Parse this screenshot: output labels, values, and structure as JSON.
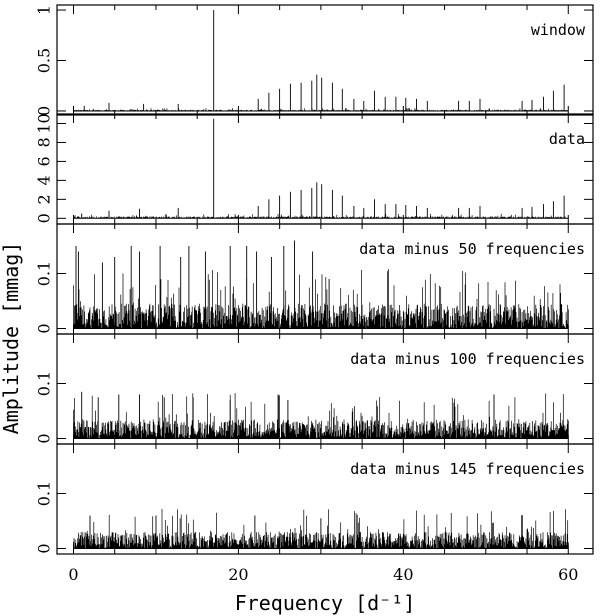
{
  "chart_data": {
    "type": "line",
    "xlabel": "Frequency [d⁻¹]",
    "ylabel": "Amplitude [mmag]",
    "xlim": [
      -2,
      63
    ],
    "x_ticks": [
      0,
      20,
      40,
      60
    ],
    "x_tick_labels": [
      "0",
      "20",
      "40",
      "60"
    ],
    "panels": [
      {
        "label": "window",
        "ylim": [
          -0.04,
          1.05
        ],
        "y_ticks": [
          0,
          0.5,
          1
        ],
        "y_tick_labels": [
          "0",
          "0.5",
          "1"
        ],
        "noise_floor": 0.012,
        "peaks": [
          {
            "x": 17.0,
            "y": 1.0
          },
          {
            "x": 29.5,
            "y": 0.36
          },
          {
            "x": 30.1,
            "y": 0.33
          },
          {
            "x": 28.9,
            "y": 0.3
          },
          {
            "x": 27.6,
            "y": 0.28
          },
          {
            "x": 26.3,
            "y": 0.27
          },
          {
            "x": 31.4,
            "y": 0.28
          },
          {
            "x": 32.6,
            "y": 0.22
          },
          {
            "x": 25.0,
            "y": 0.22
          },
          {
            "x": 23.7,
            "y": 0.18
          },
          {
            "x": 22.4,
            "y": 0.12
          },
          {
            "x": 34.0,
            "y": 0.12
          },
          {
            "x": 35.2,
            "y": 0.1
          },
          {
            "x": 36.5,
            "y": 0.2
          },
          {
            "x": 37.8,
            "y": 0.14
          },
          {
            "x": 39.1,
            "y": 0.14
          },
          {
            "x": 40.3,
            "y": 0.13
          },
          {
            "x": 41.6,
            "y": 0.12
          },
          {
            "x": 42.9,
            "y": 0.1
          },
          {
            "x": 46.7,
            "y": 0.1
          },
          {
            "x": 48.0,
            "y": 0.1
          },
          {
            "x": 49.3,
            "y": 0.12
          },
          {
            "x": 54.4,
            "y": 0.1
          },
          {
            "x": 55.6,
            "y": 0.11
          },
          {
            "x": 57.0,
            "y": 0.14
          },
          {
            "x": 58.2,
            "y": 0.2
          },
          {
            "x": 59.5,
            "y": 0.26
          },
          {
            "x": 4.3,
            "y": 0.08
          },
          {
            "x": 8.5,
            "y": 0.07
          },
          {
            "x": 12.7,
            "y": 0.07
          },
          {
            "x": 1.3,
            "y": 0.05
          }
        ]
      },
      {
        "label": "data",
        "ylim": [
          -0.6,
          11.0
        ],
        "y_ticks": [
          0,
          2,
          4,
          6,
          8,
          10
        ],
        "y_tick_labels": [
          "0",
          "2",
          "4",
          "6",
          "8",
          "10"
        ],
        "noise_floor": 0.2,
        "peaks": [
          {
            "x": 17.0,
            "y": 10.5
          },
          {
            "x": 29.5,
            "y": 3.8
          },
          {
            "x": 30.1,
            "y": 3.6
          },
          {
            "x": 28.9,
            "y": 3.2
          },
          {
            "x": 27.6,
            "y": 3.0
          },
          {
            "x": 26.3,
            "y": 2.8
          },
          {
            "x": 31.4,
            "y": 3.0
          },
          {
            "x": 32.6,
            "y": 2.4
          },
          {
            "x": 25.0,
            "y": 2.4
          },
          {
            "x": 23.7,
            "y": 2.0
          },
          {
            "x": 22.4,
            "y": 1.3
          },
          {
            "x": 34.0,
            "y": 1.3
          },
          {
            "x": 35.2,
            "y": 1.1
          },
          {
            "x": 36.5,
            "y": 2.0
          },
          {
            "x": 37.8,
            "y": 1.5
          },
          {
            "x": 39.1,
            "y": 1.5
          },
          {
            "x": 40.3,
            "y": 1.4
          },
          {
            "x": 41.6,
            "y": 1.3
          },
          {
            "x": 42.9,
            "y": 1.1
          },
          {
            "x": 46.7,
            "y": 1.1
          },
          {
            "x": 48.0,
            "y": 1.1
          },
          {
            "x": 49.3,
            "y": 1.3
          },
          {
            "x": 54.4,
            "y": 1.1
          },
          {
            "x": 55.6,
            "y": 1.2
          },
          {
            "x": 57.0,
            "y": 1.5
          },
          {
            "x": 58.2,
            "y": 1.8
          },
          {
            "x": 59.5,
            "y": 2.4
          },
          {
            "x": 12.7,
            "y": 1.1
          },
          {
            "x": 8.0,
            "y": 1.0
          },
          {
            "x": 4.3,
            "y": 0.8
          },
          {
            "x": 1.0,
            "y": 0.5
          }
        ]
      },
      {
        "label": "data minus 50 frequencies",
        "ylim": [
          -0.01,
          0.19
        ],
        "y_ticks": [
          0,
          0.1
        ],
        "y_tick_labels": [
          "0",
          "0.1"
        ],
        "noise_floor": 0.045,
        "peaks": [
          {
            "x": 0.3,
            "y": 0.15
          },
          {
            "x": 0.6,
            "y": 0.14
          },
          {
            "x": 3.5,
            "y": 0.12
          },
          {
            "x": 5.0,
            "y": 0.13
          },
          {
            "x": 7.0,
            "y": 0.15
          },
          {
            "x": 8.0,
            "y": 0.14
          },
          {
            "x": 10.5,
            "y": 0.15
          },
          {
            "x": 13.0,
            "y": 0.13
          },
          {
            "x": 14.0,
            "y": 0.15
          },
          {
            "x": 16.0,
            "y": 0.14
          },
          {
            "x": 19.0,
            "y": 0.15
          },
          {
            "x": 21.0,
            "y": 0.15
          },
          {
            "x": 22.2,
            "y": 0.14
          },
          {
            "x": 24.0,
            "y": 0.13
          },
          {
            "x": 25.5,
            "y": 0.15
          },
          {
            "x": 26.8,
            "y": 0.16
          },
          {
            "x": 29.0,
            "y": 0.14
          },
          {
            "x": 31.0,
            "y": 0.09
          },
          {
            "x": 47.5,
            "y": 0.08
          }
        ]
      },
      {
        "label": "data minus 100 frequencies",
        "ylim": [
          -0.01,
          0.19
        ],
        "y_ticks": [
          0,
          0.1
        ],
        "y_tick_labels": [
          "0",
          "0.1"
        ],
        "noise_floor": 0.035,
        "peaks": [
          {
            "x": 1.0,
            "y": 0.085
          },
          {
            "x": 3.0,
            "y": 0.075
          },
          {
            "x": 5.5,
            "y": 0.08
          },
          {
            "x": 8.0,
            "y": 0.08
          },
          {
            "x": 11.0,
            "y": 0.075
          },
          {
            "x": 14.5,
            "y": 0.075
          },
          {
            "x": 19.0,
            "y": 0.07
          },
          {
            "x": 26.0,
            "y": 0.07
          },
          {
            "x": 51.0,
            "y": 0.08
          }
        ]
      },
      {
        "label": "data minus 145 frequencies",
        "ylim": [
          -0.01,
          0.19
        ],
        "y_ticks": [
          0,
          0.1
        ],
        "y_tick_labels": [
          "0",
          "0.1"
        ],
        "noise_floor": 0.03,
        "peaks": [
          {
            "x": 2.0,
            "y": 0.06
          },
          {
            "x": 10.0,
            "y": 0.06
          },
          {
            "x": 22.0,
            "y": 0.06
          },
          {
            "x": 30.0,
            "y": 0.055
          }
        ]
      }
    ]
  }
}
